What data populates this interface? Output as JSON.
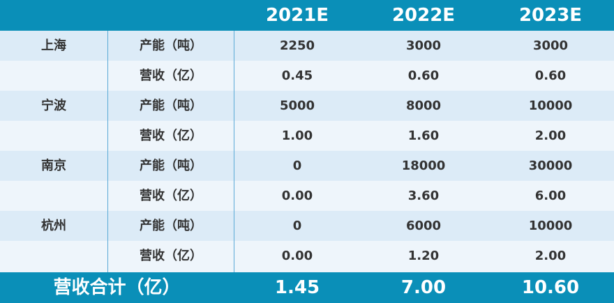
{
  "header": {
    "years": [
      "2021E",
      "2022E",
      "2023E"
    ]
  },
  "rows": [
    {
      "city": "上海",
      "metric": "产能（吨）",
      "values": [
        "2250",
        "3000",
        "3000"
      ]
    },
    {
      "city": "",
      "metric": "营收（亿）",
      "values": [
        "0.45",
        "0.60",
        "0.60"
      ]
    },
    {
      "city": "宁波",
      "metric": "产能（吨）",
      "values": [
        "5000",
        "8000",
        "10000"
      ]
    },
    {
      "city": "",
      "metric": "营收（亿）",
      "values": [
        "1.00",
        "1.60",
        "2.00"
      ]
    },
    {
      "city": "南京",
      "metric": "产能（吨）",
      "values": [
        "0",
        "18000",
        "30000"
      ]
    },
    {
      "city": "",
      "metric": "营收（亿）",
      "values": [
        "0.00",
        "3.60",
        "6.00"
      ]
    },
    {
      "city": "杭州",
      "metric": "产能（吨）",
      "values": [
        "0",
        "6000",
        "10000"
      ]
    },
    {
      "city": "",
      "metric": "营收（亿）",
      "values": [
        "0.00",
        "1.20",
        "2.00"
      ]
    }
  ],
  "footer": {
    "label": "营收合计（亿）",
    "values": [
      "1.45",
      "7.00",
      "10.60"
    ]
  },
  "colors": {
    "header_bg": "#0a8fb8",
    "row_light": "#dcebf7",
    "row_pale": "#eef5fb",
    "divider": "#5aa9d6"
  }
}
